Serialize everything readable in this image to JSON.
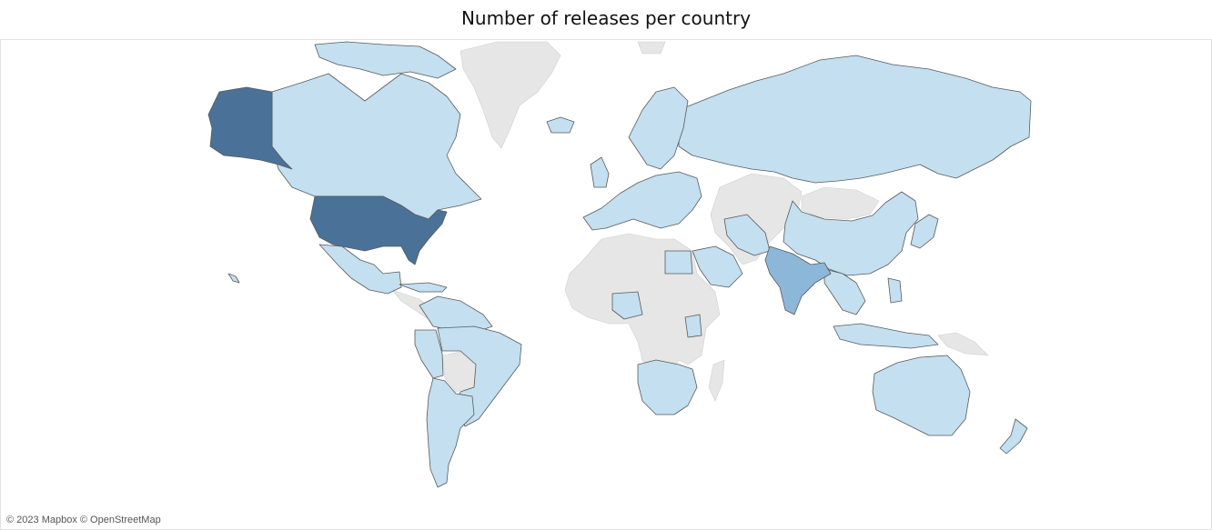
{
  "title": "Number of releases per country",
  "attribution": "© 2023 Mapbox © OpenStreetMap",
  "map": {
    "projection": "web-mercator",
    "colors": {
      "low": "#c3dff0",
      "medium": "#8db7d9",
      "high": "#4a7298",
      "no_data": "#e6e6e6",
      "border": "#5a5a5a",
      "background": "#ffffff"
    },
    "countries": [
      {
        "name": "United States",
        "level": "high"
      },
      {
        "name": "India",
        "level": "medium"
      },
      {
        "name": "Canada",
        "level": "low"
      },
      {
        "name": "Mexico",
        "level": "low"
      },
      {
        "name": "Brazil",
        "level": "low"
      },
      {
        "name": "Argentina",
        "level": "low"
      },
      {
        "name": "Russia",
        "level": "low"
      },
      {
        "name": "China",
        "level": "low"
      },
      {
        "name": "Australia",
        "level": "low"
      },
      {
        "name": "Japan",
        "level": "low"
      },
      {
        "name": "Europe",
        "level": "low"
      },
      {
        "name": "Saudi Arabia",
        "level": "low"
      },
      {
        "name": "Egypt",
        "level": "low"
      },
      {
        "name": "Nigeria",
        "level": "low"
      },
      {
        "name": "South Africa",
        "level": "low"
      },
      {
        "name": "Indonesia",
        "level": "low"
      },
      {
        "name": "Greenland",
        "level": "no_data"
      },
      {
        "name": "North Africa",
        "level": "no_data"
      },
      {
        "name": "Central Asia",
        "level": "no_data"
      },
      {
        "name": "Mongolia",
        "level": "no_data"
      }
    ]
  }
}
